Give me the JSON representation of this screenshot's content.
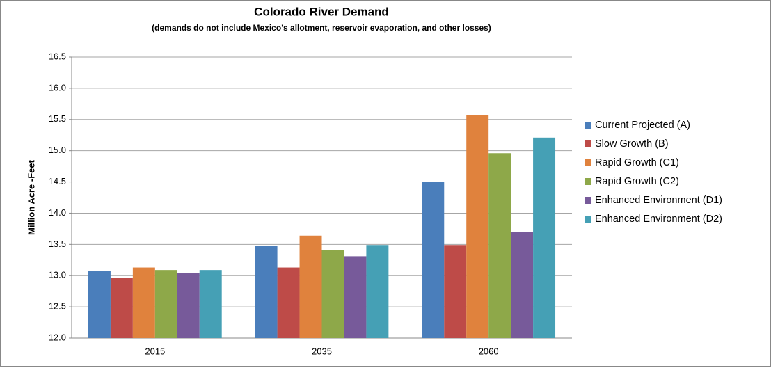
{
  "chart_data": {
    "type": "bar",
    "title": "Colorado River Demand",
    "subtitle": "(demands do not include Mexico's allotment, reservoir evaporation, and other losses)",
    "y_label": "Million Acre -Feet",
    "categories": [
      "2015",
      "2035",
      "2060"
    ],
    "series": [
      {
        "name": "Current Projected  (A)",
        "color": "#4a7ebb",
        "values": [
          13.08,
          13.48,
          14.5
        ]
      },
      {
        "name": "Slow Growth (B)",
        "color": "#be4b48",
        "values": [
          12.96,
          13.13,
          13.49
        ]
      },
      {
        "name": "Rapid Growth (C1)",
        "color": "#e0823d",
        "values": [
          13.13,
          13.64,
          15.57
        ]
      },
      {
        "name": "Rapid Growth (C2)",
        "color": "#8ea849",
        "values": [
          13.09,
          13.41,
          14.96
        ]
      },
      {
        "name": "Enhanced Environment (D1)",
        "color": "#775a9a",
        "values": [
          13.04,
          13.31,
          13.7
        ]
      },
      {
        "name": "Enhanced Environment (D2)",
        "color": "#45a0b5",
        "values": [
          13.09,
          13.49,
          15.21
        ]
      }
    ],
    "ylim": [
      12,
      16.5
    ],
    "yticks": [
      {
        "value": 12,
        "label": "12.0"
      },
      12.5,
      {
        "value": 13,
        "label": "13.0"
      },
      13.5,
      {
        "value": 14,
        "label": "14.0"
      },
      14.5,
      {
        "value": 15,
        "label": "15.0"
      },
      15.5,
      {
        "value": 16,
        "label": "16.0"
      },
      16.5
    ],
    "grid": true,
    "legend": "right"
  }
}
